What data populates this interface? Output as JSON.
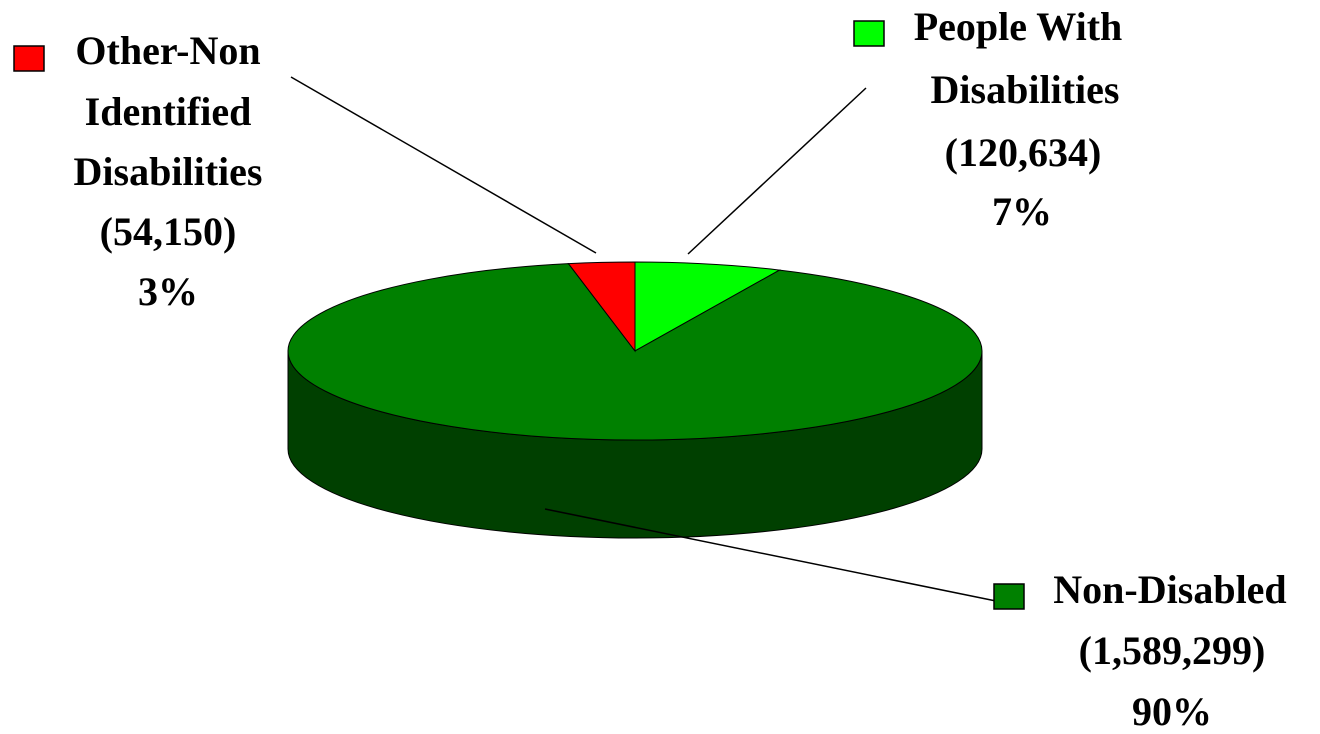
{
  "chart_data": {
    "type": "pie",
    "three_d": true,
    "slices": [
      {
        "key": "people_with_disabilities",
        "lines": [
          "People With",
          "Disabilities"
        ],
        "value": 120634,
        "value_label": "(120,634)",
        "percent_label": "7%",
        "color": "#00ff00",
        "side_color": "#00b000"
      },
      {
        "key": "non_disabled",
        "lines": [
          "Non-Disabled"
        ],
        "value": 1589299,
        "value_label": "(1,589,299)",
        "percent_label": "90%",
        "color": "#008000",
        "side_color": "#004000"
      },
      {
        "key": "other_non_identified",
        "lines": [
          "Other-Non",
          "Identified",
          "Disabilities"
        ],
        "value": 54150,
        "value_label": "(54,150)",
        "percent_label": "3%",
        "color": "#ff0000",
        "side_color": "#b00000"
      }
    ]
  }
}
